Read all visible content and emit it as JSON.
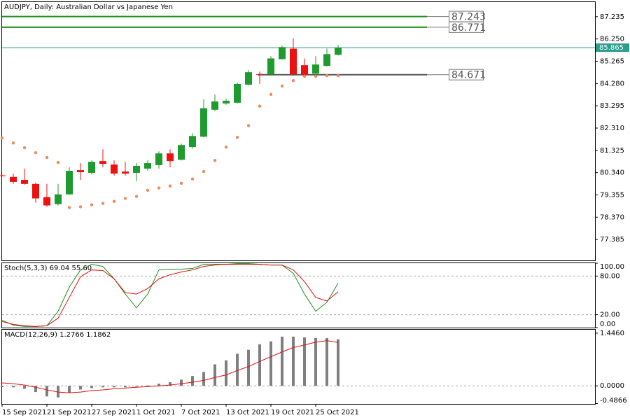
{
  "chart_data": [
    {
      "type": "candlestick",
      "title": "AUDJPY, Daily:  Australian Dollar vs Japanese Yen",
      "open": [
        80.22,
        80.15,
        80.02,
        79.84,
        79.26,
        78.95,
        79.38,
        80.45,
        80.33,
        80.85,
        80.7,
        80.39,
        80.33,
        80.52,
        80.67,
        81.19,
        80.91,
        81.47,
        81.93,
        83.12,
        83.4,
        83.43,
        84.23,
        84.7,
        84.69,
        85.36,
        85.82,
        85.09,
        84.72,
        85.06,
        85.55
      ],
      "high": [
        80.25,
        80.3,
        80.52,
        79.9,
        79.84,
        79.84,
        80.58,
        80.76,
        80.88,
        81.37,
        80.88,
        80.82,
        80.76,
        80.88,
        81.28,
        81.37,
        81.62,
        82.08,
        83.58,
        83.8,
        83.61,
        84.32,
        84.87,
        84.81,
        85.49,
        85.95,
        86.28,
        85.39,
        85.49,
        85.82,
        85.98
      ],
      "low": [
        80.18,
        79.84,
        79.81,
        79.01,
        78.83,
        78.89,
        79.35,
        80.02,
        80.27,
        80.58,
        80.21,
        80.21,
        79.96,
        80.42,
        80.52,
        80.58,
        80.88,
        81.4,
        81.9,
        83.06,
        83.34,
        83.4,
        84.2,
        84.26,
        84.63,
        85.33,
        84.66,
        84.54,
        84.69,
        85.03,
        85.52
      ],
      "close": [
        80.2,
        79.93,
        79.84,
        79.2,
        78.89,
        79.38,
        80.42,
        80.36,
        80.82,
        80.73,
        80.3,
        80.3,
        80.64,
        80.76,
        81.19,
        80.85,
        81.56,
        81.96,
        83.19,
        83.49,
        83.52,
        84.26,
        84.78,
        84.68,
        85.39,
        85.89,
        84.69,
        84.66,
        85.12,
        85.58,
        85.865
      ],
      "up_color": "#1e9b2e",
      "down_color": "#ee1111",
      "sar": [
        81.87,
        81.65,
        81.44,
        81.22,
        81.01,
        80.79,
        78.8,
        78.83,
        78.92,
        78.98,
        79.07,
        79.2,
        79.29,
        79.56,
        79.66,
        79.75,
        79.87,
        80.06,
        80.39,
        80.88,
        81.47,
        81.9,
        82.42,
        83.28,
        83.8,
        84.17,
        84.41,
        84.6,
        84.6,
        84.63,
        84.63
      ],
      "sar_color": "#f08a5d",
      "levels": [
        87.243,
        86.771,
        84.671
      ],
      "level_colors": [
        "#1f8f1f",
        "#1f8f1f",
        "#555555"
      ],
      "current_price": 85.865,
      "current_color": "#2a9d8f",
      "ylim": [
        76.46,
        87.88
      ],
      "yticks": [
        87.235,
        {
          "value": 86.25,
          "label": "86.250"
        },
        85.265,
        {
          "value": 84.28,
          "label": "84.280"
        },
        83.295,
        {
          "value": 82.31,
          "label": "82.310"
        },
        81.325,
        {
          "value": 80.34,
          "label": "80.340"
        },
        79.355,
        {
          "value": 78.37,
          "label": "78.370"
        },
        77.385
      ]
    },
    {
      "type": "line",
      "title": "Stoch(5,3,3) 69.04 55.60",
      "series": [
        {
          "color": "#1e8f1e",
          "values": [
            11.4,
            3.9,
            1.8,
            1.8,
            2.9,
            25.4,
            62.9,
            89.6,
            98.2,
            95.0,
            75.7,
            52.1,
            30.7,
            52.1,
            89.6,
            90.7,
            90.7,
            91.8,
            98.2,
            98.2,
            98.2,
            99.3,
            99.3,
            98.2,
            97.1,
            97.1,
            84.3,
            52.1,
            25.4,
            39.3,
            69.04
          ]
        },
        {
          "color": "#e01010",
          "values": [
            9.3,
            5.0,
            2.9,
            1.8,
            2.9,
            14.6,
            46.8,
            78.9,
            89.6,
            88.6,
            75.7,
            54.3,
            52.1,
            60.7,
            75.7,
            82.1,
            86.4,
            89.6,
            95.0,
            97.1,
            98.2,
            98.2,
            98.2,
            98.2,
            97.1,
            97.1,
            89.6,
            71.4,
            46.8,
            41.4,
            55.6
          ]
        }
      ],
      "levels": [
        80,
        20
      ],
      "ylim": [
        0,
        100
      ],
      "yticks": [
        {
          "value": 100,
          "label": "100.00"
        },
        {
          "value": 80,
          "label": "80.00"
        },
        {
          "value": 20,
          "label": "20.00"
        },
        {
          "value": 0,
          "label": "0.00"
        }
      ]
    },
    {
      "type": "bar",
      "title": "MACD(12,26,9) 1.2766 1.1862",
      "categories": [
        "15 Sep 2021",
        null,
        null,
        null,
        "21 Sep 2021",
        null,
        null,
        null,
        "27 Sep 2021",
        null,
        null,
        null,
        "1 Oct 2021",
        null,
        null,
        null,
        "7 Oct 2021",
        null,
        null,
        null,
        "13 Oct 2021",
        null,
        null,
        null,
        "19 Oct 2021",
        null,
        null,
        null,
        "25 Oct 2021",
        null,
        null
      ],
      "values": [
        -0.03,
        -0.04,
        -0.08,
        -0.17,
        -0.29,
        -0.32,
        -0.19,
        -0.1,
        -0.06,
        -0.04,
        -0.04,
        -0.04,
        -0.02,
        0.01,
        0.06,
        0.1,
        0.17,
        0.27,
        0.38,
        0.59,
        0.7,
        0.88,
        0.99,
        1.14,
        1.22,
        1.35,
        1.35,
        1.33,
        1.31,
        1.31,
        1.2766
      ],
      "color": "#7f7f7f",
      "line_values": [
        0.08,
        0.06,
        0.02,
        -0.04,
        -0.11,
        -0.17,
        -0.19,
        -0.17,
        -0.13,
        -0.11,
        -0.08,
        -0.06,
        -0.04,
        -0.02,
        0.0,
        0.02,
        0.06,
        0.1,
        0.15,
        0.23,
        0.3,
        0.42,
        0.53,
        0.67,
        0.8,
        0.93,
        1.05,
        1.12,
        1.2,
        1.24,
        1.1862
      ],
      "line_color": "#e01010",
      "ylim": [
        -0.495,
        1.54
      ],
      "yticks": [
        {
          "value": 1.446,
          "label": "1.4460"
        },
        {
          "value": 0,
          "label": "0.0000"
        },
        {
          "value": -0.4866,
          "label": "-0.4866"
        }
      ]
    }
  ]
}
